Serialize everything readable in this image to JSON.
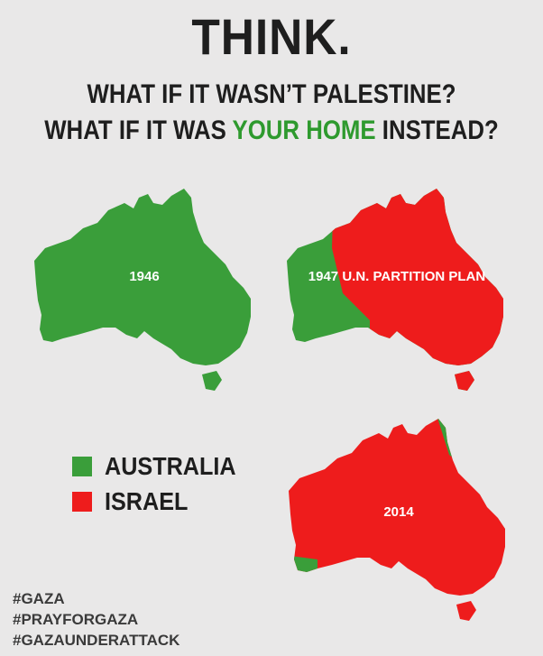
{
  "header": {
    "title": "THINK.",
    "line1": "WHAT IF IT WASN’T PALESTINE?",
    "line2_pre": "WHAT IF IT WAS ",
    "line2_highlight": "YOUR HOME",
    "line2_post": " INSTEAD?"
  },
  "maps": [
    {
      "label": "1946",
      "share_israel": 0.0
    },
    {
      "label": "1947 U.N. PARTITION PLAN",
      "share_israel": 0.56
    },
    {
      "label": "2014",
      "share_israel": 0.92
    }
  ],
  "legend": {
    "items": [
      {
        "label": "AUSTRALIA",
        "color": "#3a9e3a"
      },
      {
        "label": "ISRAEL",
        "color": "#ee1c1c"
      }
    ]
  },
  "hashtags": [
    "#GAZA",
    "#PRAYFORGAZA",
    "#GAZAUNDERATTACK"
  ],
  "colors": {
    "background": "#e9e8e8",
    "green": "#3a9e3a",
    "red": "#ee1c1c",
    "highlight": "#2e9a2e"
  }
}
